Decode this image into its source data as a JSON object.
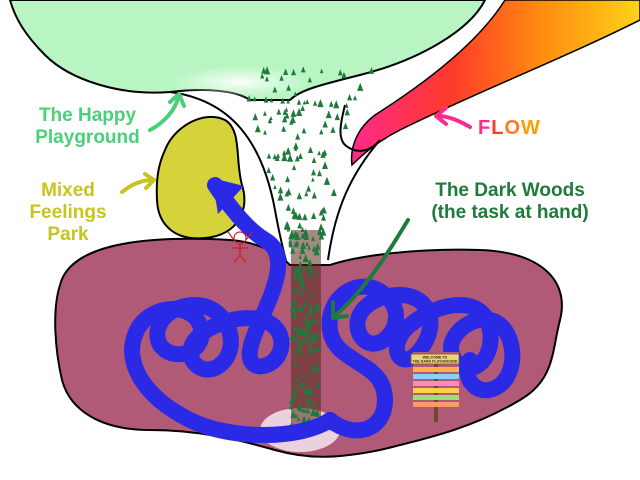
{
  "labels": {
    "happy_playground_line1": "The Happy",
    "happy_playground_line2": "Playground",
    "mixed_feelings_line1": "Mixed",
    "mixed_feelings_line2": "Feelings",
    "mixed_feelings_line3": "Park",
    "dark_woods_line1": "The Dark Woods",
    "dark_woods_line2": "(the task at hand)",
    "flow_F": "F",
    "flow_L": "L",
    "flow_O": "O",
    "flow_W": "W",
    "sign_title_line1": "WELCOME TO",
    "sign_title_line2": "THE DARK PLAYGROUND"
  },
  "colors": {
    "happy_green": "#b8f5c2",
    "label_green": "#4ccf7a",
    "park_yellow": "#d6d23a",
    "label_yellow": "#c8c31e",
    "pit_mauve": "#b05a78",
    "woods_green": "#1f7a3c",
    "scribble_blue": "#2a2ae6",
    "flow_F": "#ff2a8a",
    "flow_L": "#ff3b2a",
    "flow_O": "#ff7a1a",
    "flow_W": "#ff9e00"
  },
  "icons": [
    "arrow-icon",
    "tree-icon",
    "signpost-icon",
    "stick-figure-icon",
    "rainbow-icon"
  ]
}
